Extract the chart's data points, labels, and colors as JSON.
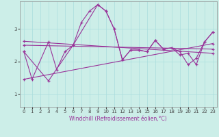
{
  "xlabel": "Windchill (Refroidissement éolien,°C)",
  "background_color": "#cceee8",
  "line_color": "#993399",
  "grid_color": "#aadddd",
  "x_ticks": [
    0,
    1,
    2,
    3,
    4,
    5,
    6,
    7,
    8,
    9,
    10,
    11,
    12,
    13,
    14,
    15,
    16,
    17,
    18,
    19,
    20,
    21,
    22,
    23
  ],
  "y_ticks": [
    1,
    2,
    3
  ],
  "ylim": [
    0.6,
    3.85
  ],
  "xlim": [
    -0.5,
    23.5
  ],
  "series1_x": [
    0,
    1,
    3,
    4,
    5,
    6,
    7,
    8,
    9,
    10,
    11,
    12,
    13,
    14,
    15,
    16,
    17,
    18,
    19,
    20,
    21,
    22,
    23
  ],
  "series1_y": [
    2.3,
    1.45,
    2.6,
    1.75,
    2.3,
    2.5,
    3.2,
    3.55,
    3.75,
    3.55,
    3.0,
    2.05,
    2.35,
    2.35,
    2.3,
    2.65,
    2.38,
    2.42,
    2.3,
    1.9,
    2.1,
    2.6,
    2.9
  ],
  "series2_x": [
    0,
    3,
    6,
    9,
    10,
    11,
    12,
    13,
    14,
    15,
    16,
    17,
    18,
    19,
    20,
    21,
    22,
    23
  ],
  "series2_y": [
    2.3,
    1.4,
    2.5,
    3.75,
    3.55,
    3.0,
    2.05,
    2.35,
    2.35,
    2.3,
    2.65,
    2.38,
    2.42,
    2.2,
    2.25,
    1.9,
    2.6,
    2.9
  ],
  "line3_x": [
    0,
    23
  ],
  "line3_y": [
    2.62,
    2.25
  ],
  "line4_x": [
    0,
    23
  ],
  "line4_y": [
    2.5,
    2.38
  ],
  "line5_x": [
    0,
    23
  ],
  "line5_y": [
    1.45,
    2.55
  ]
}
